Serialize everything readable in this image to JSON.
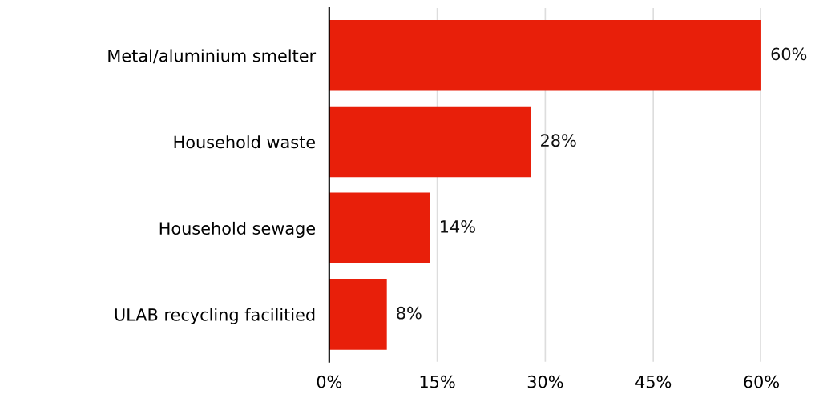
{
  "chart_data": {
    "type": "bar",
    "orientation": "horizontal",
    "categories": [
      "Metal/aluminium smelter",
      "Household waste",
      "Household sewage",
      "ULAB recycling facilitied"
    ],
    "values": [
      60,
      28,
      14,
      8
    ],
    "value_labels": [
      "60%",
      "28%",
      "14%",
      "8%"
    ],
    "color": "#e81f0a",
    "xlim": [
      0,
      60
    ],
    "xticks": [
      {
        "value": 0,
        "label": "0%"
      },
      {
        "value": 15,
        "label": "15%"
      },
      {
        "value": 30,
        "label": "30%"
      },
      {
        "value": 45,
        "label": "45%"
      },
      {
        "value": 60,
        "label": "60%"
      }
    ],
    "grid": "x",
    "legend": false
  }
}
